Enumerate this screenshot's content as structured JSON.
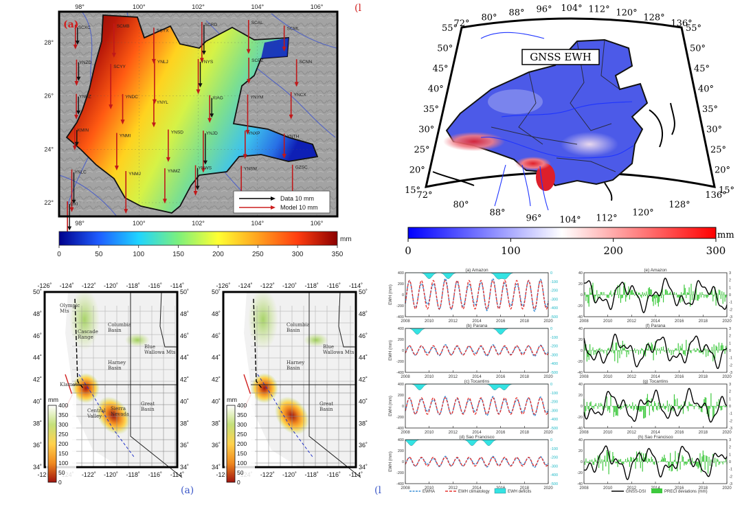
{
  "chart_data": [
    {
      "type": "heatmap",
      "panel_label": "(a)",
      "lon_ticks": [
        "98°",
        "100°",
        "102°",
        "104°",
        "106°"
      ],
      "lat_ticks": [
        "28°",
        "26°",
        "24°",
        "22°"
      ],
      "colorbar": {
        "ticks": [
          "0",
          "50",
          "100",
          "150",
          "200",
          "250",
          "300",
          "350"
        ],
        "unit": "mm",
        "range": [
          0,
          350
        ],
        "colors": [
          "#00008b",
          "#1f5dff",
          "#1fd4ff",
          "#7cf07c",
          "#ffff33",
          "#ffa21f",
          "#ff3d0f",
          "#8b0000"
        ]
      },
      "legend": [
        {
          "label": "Data 10 mm",
          "color": "#000000"
        },
        {
          "label": "Model 10 mm",
          "color": "#cc1f1f"
        }
      ],
      "stations": [
        "SCXC",
        "SCMB",
        "SCYX",
        "SCRD",
        "SCAL",
        "SCML",
        "YNZD",
        "SCYY",
        "YNLJ",
        "YNYS",
        "SCPZ",
        "SCNN",
        "YNHZ",
        "YNDC",
        "YNYL",
        "XIAG",
        "YNYM",
        "YNCX",
        "KMIN",
        "YNMI",
        "YNSD",
        "YNJD",
        "YNXP",
        "YNTH",
        "YNLC",
        "YNMJ",
        "YNMZ",
        "YNWS",
        "YNSM",
        "GZSC",
        "GXI"
      ],
      "edge_label": "(l"
    },
    {
      "type": "heatmap",
      "title": "GNSS EWH",
      "lat_ticks": [
        "55°",
        "50°",
        "45°",
        "40°",
        "35°",
        "30°",
        "25°",
        "20°",
        "15°"
      ],
      "lon_ticks_top": [
        "72°",
        "80°",
        "88°",
        "96°",
        "104°",
        "112°",
        "120°",
        "128°",
        "136°"
      ],
      "lon_ticks_bottom": [
        "72°",
        "80°",
        "88°",
        "96°",
        "104°",
        "112°",
        "120°",
        "128°",
        "136°"
      ],
      "colorbar": {
        "ticks": [
          "0",
          "100",
          "200",
          "300"
        ],
        "unit": "mm",
        "range": [
          0,
          300
        ],
        "colors": [
          "#0000ff",
          "#ffffff",
          "#ff0000"
        ]
      }
    },
    {
      "type": "heatmap",
      "panel_label": "(a)",
      "lon_ticks": [
        "-126˚",
        "-124˚",
        "-122˚",
        "-120˚",
        "-118˚",
        "-116˚",
        "-114˚"
      ],
      "lat_ticks": [
        "50˚",
        "48˚",
        "46˚",
        "44˚",
        "42˚",
        "40˚",
        "38˚",
        "36˚",
        "34˚"
      ],
      "colorbar": {
        "unit": "mm",
        "ticks": [
          "400",
          "350",
          "300",
          "250",
          "200",
          "150",
          "100",
          "50",
          "0"
        ],
        "range": [
          0,
          400
        ],
        "colors": [
          "#ffffff",
          "#c4e07a",
          "#ffd24d",
          "#f08a1f",
          "#a0140f"
        ]
      },
      "places": [
        "Columbia Basin",
        "Blue Wallowa Mts",
        "Harney Basin",
        "Great Basin",
        "Olympic Mts",
        "Klamath",
        "Cascade Range",
        "Sierra Nevada",
        "Central Valley"
      ]
    },
    {
      "type": "heatmap",
      "lon_ticks": [
        "-126˚",
        "-124˚",
        "-122˚",
        "-120˚",
        "-118˚",
        "-116˚",
        "-114˚"
      ],
      "lat_ticks": [
        "50˚",
        "48˚",
        "46˚",
        "44˚",
        "42˚",
        "40˚",
        "38˚",
        "36˚",
        "34˚"
      ],
      "colorbar": {
        "unit": "mm",
        "ticks": [
          "400",
          "350",
          "300",
          "250",
          "200",
          "150",
          "100",
          "50",
          "0"
        ],
        "range": [
          0,
          400
        ]
      },
      "places": [
        "Columbia Basin",
        "Blue Wallowa Mts",
        "Harney Basin",
        "Great Basin"
      ],
      "edge_label": "(l"
    },
    {
      "type": "line",
      "x_ticks": [
        "2008",
        "2010",
        "2012",
        "2014",
        "2016",
        "2018",
        "2020"
      ],
      "ylabel": "EWH (mm)",
      "left_y_ticks": [
        "400",
        "200",
        "0",
        "-200",
        "-400"
      ],
      "right_y_ticks": [
        "0",
        "-100",
        "-200",
        "-300",
        "-400",
        "-500"
      ],
      "xlim": [
        2008,
        2020
      ],
      "ylim": [
        -400,
        400
      ],
      "panels": [
        {
          "title": "(a) Amazon",
          "amplitude": 260,
          "deficit_peaks": [
            2010.0,
            2011.6,
            2015.8,
            2016.4
          ]
        },
        {
          "title": "(b) Parana",
          "amplitude": 85,
          "deficit_peaks": [
            2009.0,
            2016.0
          ]
        },
        {
          "title": "(c) Tocantins",
          "amplitude": 150,
          "deficit_peaks": [
            2009.2,
            2015.5,
            2016.3
          ]
        },
        {
          "title": "(d) Sao Francisco",
          "amplitude": 80,
          "deficit_peaks": [
            2008.5,
            2013.6,
            2015.0
          ]
        }
      ],
      "series": [
        {
          "name": "EWHA",
          "color": "#3a8fd6"
        },
        {
          "name": "EWH climatology",
          "color": "#e6322f"
        },
        {
          "name": "EWH deficits",
          "color": "#34e3e3"
        }
      ]
    },
    {
      "type": "line",
      "x_ticks": [
        "2008",
        "2010",
        "2012",
        "2014",
        "2016",
        "2018",
        "2020"
      ],
      "left_y_ticks": [
        "40",
        "20",
        "0",
        "-20",
        "-40"
      ],
      "right_y_ticks": [
        "3",
        "2",
        "1",
        "0",
        "-1",
        "-2",
        "-3"
      ],
      "xlim": [
        2008,
        2020
      ],
      "ylim": [
        -3,
        3
      ],
      "panels": [
        {
          "title": "(e) Amazon"
        },
        {
          "title": "(f) Parana"
        },
        {
          "title": "(g) Tocantins"
        },
        {
          "title": "(h) Sao Francisco"
        }
      ],
      "series": [
        {
          "name": "GNSS-DSI",
          "color": "#000000"
        },
        {
          "name": "PRECI deviations (mm)",
          "color": "#3ec93e"
        }
      ]
    }
  ]
}
